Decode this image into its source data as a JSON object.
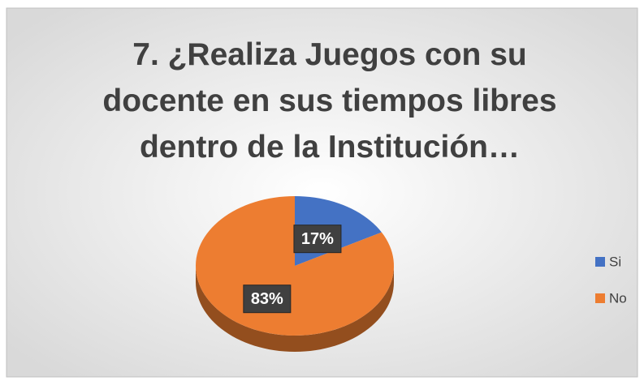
{
  "chart_data": {
    "type": "pie",
    "title": "7. ¿Realiza Juegos con su docente en sus tiempos libres dentro de la Institución…",
    "categories": [
      "Si",
      "No"
    ],
    "values": [
      17,
      83
    ],
    "value_labels": [
      "17%",
      "83%"
    ],
    "colors": [
      "#4472c4",
      "#ed7d31"
    ],
    "legend": "right"
  }
}
